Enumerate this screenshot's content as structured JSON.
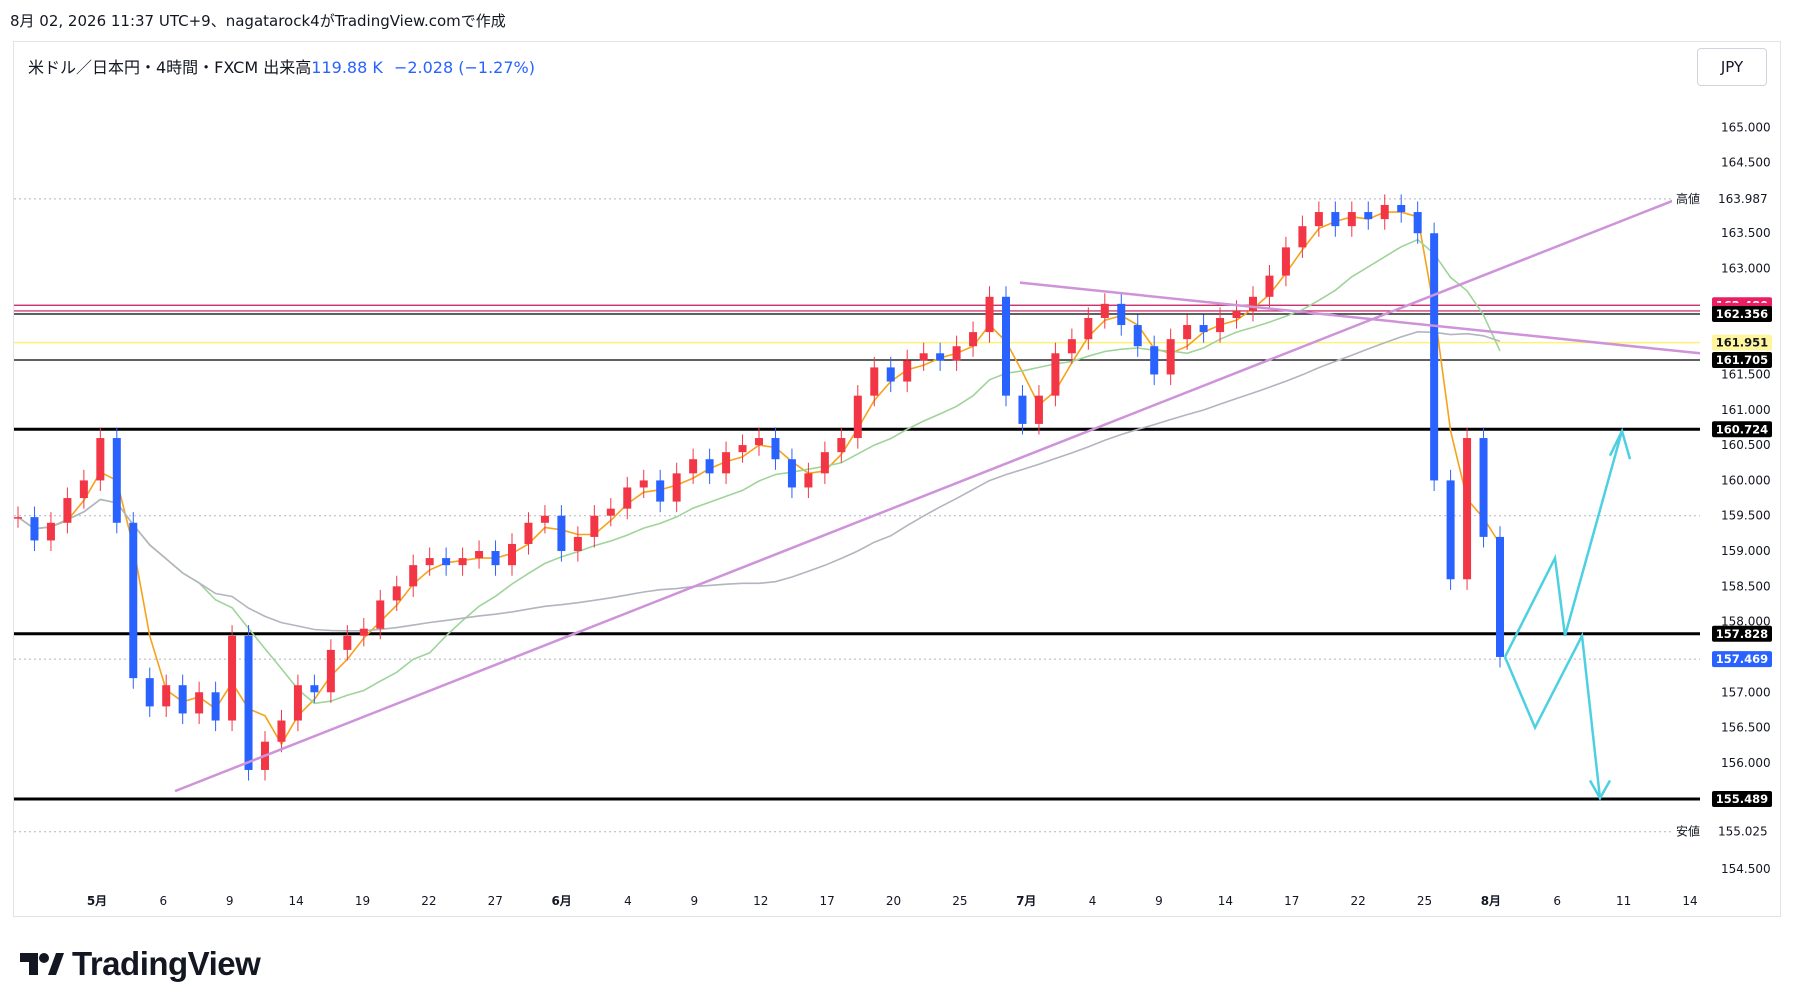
{
  "header": {
    "timestamp": "8月 02, 2026 11:37 UTC+9、nagatarock4がTradingView.comで作成"
  },
  "symbol": {
    "name": "米ドル／日本円・4時間・FXCM",
    "volume_label": "出来高",
    "volume_value": "119.88 K",
    "change": "−2.028 (−1.27%)"
  },
  "currency_button": "JPY",
  "brand": {
    "name": "TradingView"
  },
  "colors": {
    "up": "#f23645",
    "down": "#2962ff",
    "ma_fast": "#f7a21b",
    "ma_mid": "#9fd49a",
    "ma_slow": "#b2b5be",
    "trendline": "#ce93d8",
    "projection": "#4dd0e1",
    "level": "#000000"
  },
  "chart_data": {
    "type": "candlestick",
    "instrument": "米ドル／日本円",
    "timeframe": "4時間",
    "currency": "JPY",
    "y_ticks": [
      "165.000",
      "164.500",
      "163.500",
      "163.000",
      "161.500",
      "161.000",
      "160.500",
      "160.000",
      "159.500",
      "159.000",
      "158.500",
      "158.000",
      "157.000",
      "156.500",
      "156.000",
      "154.500"
    ],
    "x_ticks": [
      "5月",
      "6",
      "9",
      "14",
      "19",
      "22",
      "27",
      "6月",
      "4",
      "9",
      "12",
      "17",
      "20",
      "25",
      "7月",
      "4",
      "9",
      "14",
      "17",
      "22",
      "25",
      "8月",
      "6",
      "11",
      "14"
    ],
    "ylim": [
      154.2,
      165.5
    ],
    "high": {
      "label": "高値",
      "value": "163.987"
    },
    "low": {
      "label": "安値",
      "value": "155.025"
    },
    "price_labels": [
      {
        "value": "162.480",
        "color": "#e91e63"
      },
      {
        "value": "162.400",
        "color": "#e91e63"
      },
      {
        "value": "162.356",
        "color": "#000000"
      },
      {
        "value": "161.951",
        "color": "#fff59d"
      },
      {
        "value": "161.705",
        "color": "#000000"
      },
      {
        "value": "160.724",
        "color": "#000000"
      },
      {
        "value": "157.828",
        "color": "#000000"
      },
      {
        "value": "157.469",
        "color": "#2962ff"
      },
      {
        "value": "155.489",
        "color": "#000000"
      }
    ],
    "horizontal_levels": [
      162.48,
      162.4,
      162.356,
      161.951,
      161.705,
      160.724,
      157.828,
      155.489
    ],
    "dotted_levels": [
      163.987,
      159.5,
      157.469,
      155.025
    ],
    "close": [
      159.48,
      159.15,
      159.4,
      159.75,
      160.0,
      160.6,
      159.4,
      157.2,
      156.8,
      157.1,
      156.7,
      157.0,
      156.6,
      157.8,
      155.9,
      156.3,
      156.6,
      157.1,
      157.0,
      157.6,
      157.8,
      157.9,
      158.3,
      158.5,
      158.8,
      158.9,
      158.8,
      158.9,
      159.0,
      158.8,
      159.1,
      159.4,
      159.5,
      159.0,
      159.2,
      159.5,
      159.6,
      159.9,
      160.0,
      159.7,
      160.1,
      160.3,
      160.1,
      160.4,
      160.5,
      160.6,
      160.3,
      159.9,
      160.1,
      160.4,
      160.6,
      161.2,
      161.6,
      161.4,
      161.7,
      161.8,
      161.7,
      161.9,
      162.1,
      162.6,
      161.2,
      160.8,
      161.2,
      161.8,
      162.0,
      162.3,
      162.5,
      162.2,
      161.9,
      161.5,
      162.0,
      162.2,
      162.1,
      162.3,
      162.4,
      162.6,
      162.9,
      163.3,
      163.6,
      163.8,
      163.6,
      163.8,
      163.7,
      163.9,
      163.8,
      163.5,
      160.0,
      158.6,
      160.6,
      159.2,
      157.5
    ]
  }
}
